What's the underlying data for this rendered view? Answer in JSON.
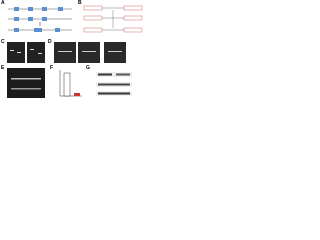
{
  "panels": [
    {
      "label": "A"
    },
    {
      "label": "B"
    },
    {
      "label": "C"
    },
    {
      "label": "D"
    },
    {
      "label": "E"
    },
    {
      "label": "F"
    },
    {
      "label": "G"
    }
  ]
}
